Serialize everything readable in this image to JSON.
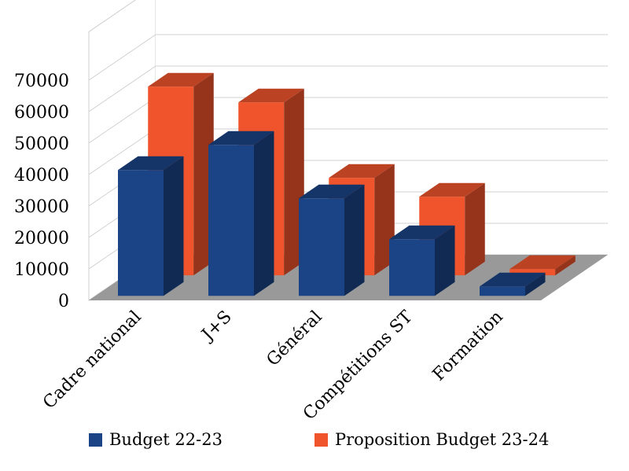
{
  "chart_data": {
    "type": "bar",
    "categories": [
      "Cadre national",
      "J+S",
      "Général",
      "Compétitions ST",
      "Formation"
    ],
    "series": [
      {
        "name": "Budget 22-23",
        "values": [
          40000,
          48000,
          31000,
          18000,
          3000
        ],
        "color": "#1b4487"
      },
      {
        "name": "Proposition Budget 23-24",
        "values": [
          60000,
          55000,
          31000,
          25000,
          2000
        ],
        "color": "#f0542c"
      }
    ],
    "ylim": [
      0,
      70000
    ],
    "yticks": [
      0,
      10000,
      20000,
      30000,
      40000,
      50000,
      60000,
      70000
    ],
    "grid": true,
    "legend_position": "bottom",
    "floor_color": "#999999"
  }
}
